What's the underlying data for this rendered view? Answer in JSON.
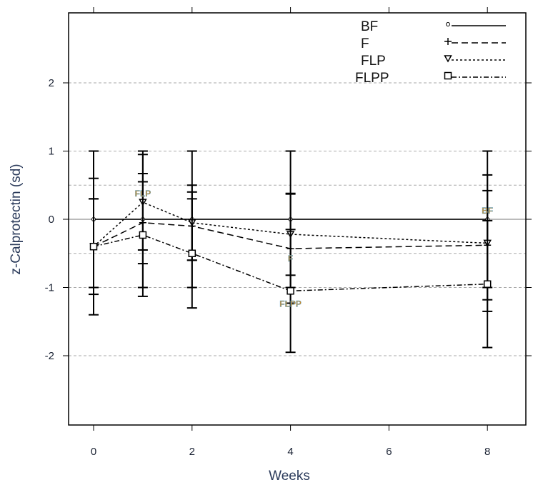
{
  "chart_data": {
    "type": "line",
    "xlabel": "Weeks",
    "ylabel": "z-Calprotectin (sd)",
    "x": [
      0,
      1,
      2,
      4,
      8
    ],
    "xlim": [
      -0.5,
      8.7
    ],
    "ylim": [
      -3,
      3
    ],
    "xticks": [
      0,
      2,
      4,
      6,
      8
    ],
    "yticks": [
      -2,
      -1,
      0,
      1,
      2
    ],
    "grid": {
      "dashed": [
        -2,
        -1,
        -0.5,
        0.5,
        1,
        2
      ],
      "solid": [
        0
      ]
    },
    "legend": "top-right",
    "series": [
      {
        "name": "BF",
        "marker": "circle",
        "line": "solid",
        "values": [
          0,
          0,
          0,
          0,
          0
        ],
        "err": [
          1,
          1,
          1,
          1,
          1
        ]
      },
      {
        "name": "F",
        "marker": "plus",
        "line": "dashed",
        "values": [
          -0.4,
          -0.05,
          -0.1,
          -0.43,
          -0.38
        ],
        "err": [
          0.7,
          0.6,
          0.5,
          0.8,
          0.8
        ]
      },
      {
        "name": "FLP",
        "marker": "triangle-down",
        "line": "dotted",
        "values": [
          -0.4,
          0.25,
          -0.05,
          -0.22,
          -0.35
        ],
        "err": [
          0.7,
          0.7,
          0.55,
          0.6,
          1.0
        ]
      },
      {
        "name": "FLPP",
        "marker": "square",
        "line": "dotdash",
        "values": [
          -0.4,
          -0.23,
          -0.5,
          -1.05,
          -0.95
        ],
        "err": [
          1.0,
          0.9,
          0.8,
          0.9,
          0.93
        ]
      }
    ],
    "annotations": [
      {
        "text": "FLP",
        "x": 1,
        "y": 0.25
      },
      {
        "text": "F",
        "x": 4,
        "y": -0.43
      },
      {
        "text": "FLPP",
        "x": 4,
        "y": -1.05
      },
      {
        "text": "BF",
        "x": 8,
        "y": 0
      }
    ]
  }
}
